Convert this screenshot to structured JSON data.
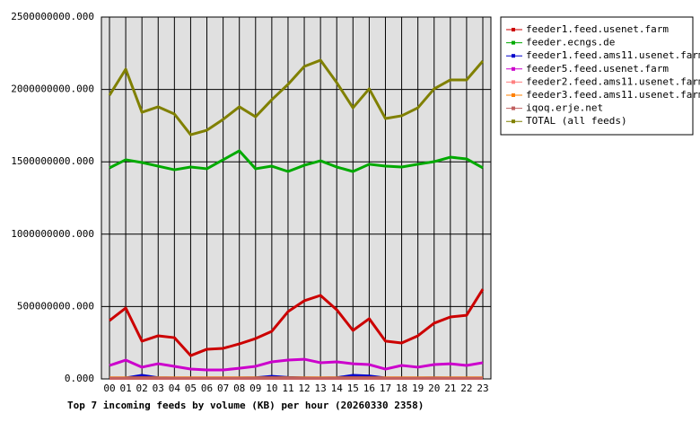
{
  "chart_data": {
    "type": "line",
    "title": "Top 7 incoming feeds by volume (KB) per hour (20260330 2358)",
    "categories": [
      "00",
      "01",
      "02",
      "03",
      "04",
      "05",
      "06",
      "07",
      "08",
      "09",
      "10",
      "11",
      "12",
      "13",
      "14",
      "15",
      "16",
      "17",
      "18",
      "19",
      "20",
      "21",
      "22",
      "23"
    ],
    "ylim": [
      0,
      2500000000
    ],
    "yticks": [
      {
        "value": 0,
        "label": "0.000"
      },
      {
        "value": 500000000,
        "label": "500000000.000"
      },
      {
        "value": 1000000000,
        "label": "1000000000.000"
      },
      {
        "value": 1500000000,
        "label": "1500000000.000"
      },
      {
        "value": 2000000000,
        "label": "2000000000.000"
      },
      {
        "value": 2500000000,
        "label": "2500000000.000"
      }
    ],
    "grid": true,
    "legend": "right",
    "series": [
      {
        "name": "feeder1.feed.usenet.farm",
        "color": "#cc0000",
        "values": [
          403000000,
          490000000,
          261000000,
          298000000,
          285000000,
          161000000,
          205000000,
          211000000,
          242000000,
          279000000,
          329000000,
          465000000,
          540000000,
          577000000,
          478000000,
          335000000,
          416000000,
          261000000,
          248000000,
          298000000,
          385000000,
          428000000,
          440000000,
          620000000
        ]
      },
      {
        "name": "feeder.ecngs.de",
        "color": "#00aa00",
        "values": [
          1458000000,
          1514000000,
          1495000000,
          1470000000,
          1445000000,
          1464000000,
          1452000000,
          1514000000,
          1576000000,
          1452000000,
          1470000000,
          1433000000,
          1476000000,
          1507000000,
          1464000000,
          1433000000,
          1483000000,
          1470000000,
          1464000000,
          1483000000,
          1501000000,
          1532000000,
          1520000000,
          1458000000
        ]
      },
      {
        "name": "feeder1.feed.ams11.usenet.farm",
        "color": "#0000cc",
        "values": [
          5000000,
          6000000,
          25000000,
          8000000,
          6000000,
          5000000,
          5000000,
          5000000,
          6000000,
          8000000,
          18000000,
          10000000,
          7000000,
          6000000,
          8000000,
          25000000,
          20000000,
          6000000,
          5000000,
          6000000,
          7000000,
          6000000,
          5000000,
          6000000
        ]
      },
      {
        "name": "feeder5.feed.usenet.farm",
        "color": "#cc00cc",
        "values": [
          93000000,
          130000000,
          81000000,
          105000000,
          87000000,
          68000000,
          62000000,
          62000000,
          74000000,
          87000000,
          118000000,
          130000000,
          136000000,
          112000000,
          118000000,
          105000000,
          99000000,
          68000000,
          93000000,
          81000000,
          99000000,
          105000000,
          93000000,
          112000000
        ]
      },
      {
        "name": "feeder2.feed.ams11.usenet.farm",
        "color": "#ff8080",
        "values": [
          3000000,
          3000000,
          3000000,
          3000000,
          3000000,
          3000000,
          3000000,
          3000000,
          3000000,
          3000000,
          3000000,
          3000000,
          3000000,
          3000000,
          3000000,
          3000000,
          3000000,
          3000000,
          3000000,
          3000000,
          3000000,
          3000000,
          3000000,
          3000000
        ]
      },
      {
        "name": "feeder3.feed.ams11.usenet.farm",
        "color": "#ff8000",
        "values": [
          8000000,
          8000000,
          8000000,
          8000000,
          8000000,
          8000000,
          8000000,
          8000000,
          8000000,
          8000000,
          8000000,
          8000000,
          8000000,
          8000000,
          8000000,
          8000000,
          8000000,
          8000000,
          8000000,
          8000000,
          8000000,
          8000000,
          8000000,
          8000000
        ]
      },
      {
        "name": "iqoq.erje.net",
        "color": "#c06060",
        "values": [
          5000000,
          5000000,
          5000000,
          5000000,
          5000000,
          5000000,
          5000000,
          5000000,
          5000000,
          5000000,
          5000000,
          5000000,
          5000000,
          5000000,
          5000000,
          5000000,
          5000000,
          5000000,
          5000000,
          5000000,
          5000000,
          5000000,
          5000000,
          5000000
        ]
      },
      {
        "name": "TOTAL (all feeds)",
        "color": "#808000",
        "values": [
          1960000000,
          2140000000,
          1842000000,
          1880000000,
          1830000000,
          1687000000,
          1718000000,
          1793000000,
          1880000000,
          1811000000,
          1929000000,
          2035000000,
          2159000000,
          2202000000,
          2047000000,
          1873000000,
          2004000000,
          1799000000,
          1818000000,
          1873000000,
          2004000000,
          2066000000,
          2066000000,
          2196000000
        ]
      }
    ]
  }
}
